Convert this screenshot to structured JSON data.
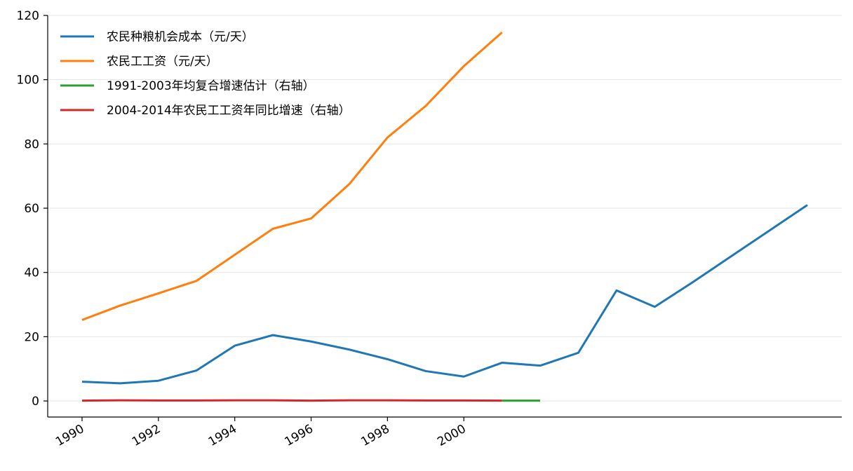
{
  "chart_data": {
    "type": "line",
    "title": "",
    "xlabel": "",
    "ylabel": "",
    "ylim": [
      -5,
      120
    ],
    "xlim": [
      1989.1,
      2009.9
    ],
    "yticks": [
      0,
      20,
      40,
      60,
      80,
      100,
      120
    ],
    "xticks": [
      1990,
      1992,
      1994,
      1996,
      1998,
      2000
    ],
    "xtick_labels": [
      "1990",
      "1992",
      "1994",
      "1996",
      "1998",
      "2000"
    ],
    "grid": "horizontal",
    "legend_position": "top-left",
    "series": [
      {
        "name": "农民种粮机会成本（元/天）",
        "color": "#1f77b4",
        "x": [
          1990,
          1991,
          1992,
          1993,
          1994,
          1995,
          1996,
          1997,
          1998,
          1999,
          2000,
          2001,
          2002,
          2003,
          2004,
          2005,
          2006,
          2007,
          2008,
          2009
        ],
        "values": [
          6.0,
          5.5,
          6.3,
          9.5,
          17.2,
          20.5,
          18.5,
          16.0,
          13.0,
          9.3,
          7.6,
          11.9,
          11.0,
          15.0,
          34.4,
          29.3,
          37.0,
          45.0,
          53.0,
          61.0
        ]
      },
      {
        "name": "农民工工资（元/天）",
        "color": "#ff7f0e",
        "x": [
          1990,
          1991,
          1992,
          1993,
          1994,
          1995,
          1996,
          1997,
          1998,
          1999,
          2000,
          2001
        ],
        "values": [
          25.2,
          29.7,
          33.5,
          37.4,
          45.5,
          53.6,
          56.8,
          67.5,
          82.0,
          91.8,
          104.2,
          114.7
        ]
      },
      {
        "name": "1991-2003年均复合增速估计（右轴）",
        "color": "#2ca02c",
        "x": [
          2001,
          2002
        ],
        "values": [
          0.1,
          0.1
        ]
      },
      {
        "name": "2004-2014年农民工工资年同比增速（右轴）",
        "color": "#d62728",
        "x": [
          1990,
          1991,
          1992,
          1993,
          1994,
          1995,
          1996,
          1997,
          1998,
          1999,
          2000,
          2001
        ],
        "values": [
          0.1,
          0.2,
          0.15,
          0.15,
          0.2,
          0.2,
          0.1,
          0.2,
          0.2,
          0.15,
          0.15,
          0.1
        ]
      }
    ]
  }
}
